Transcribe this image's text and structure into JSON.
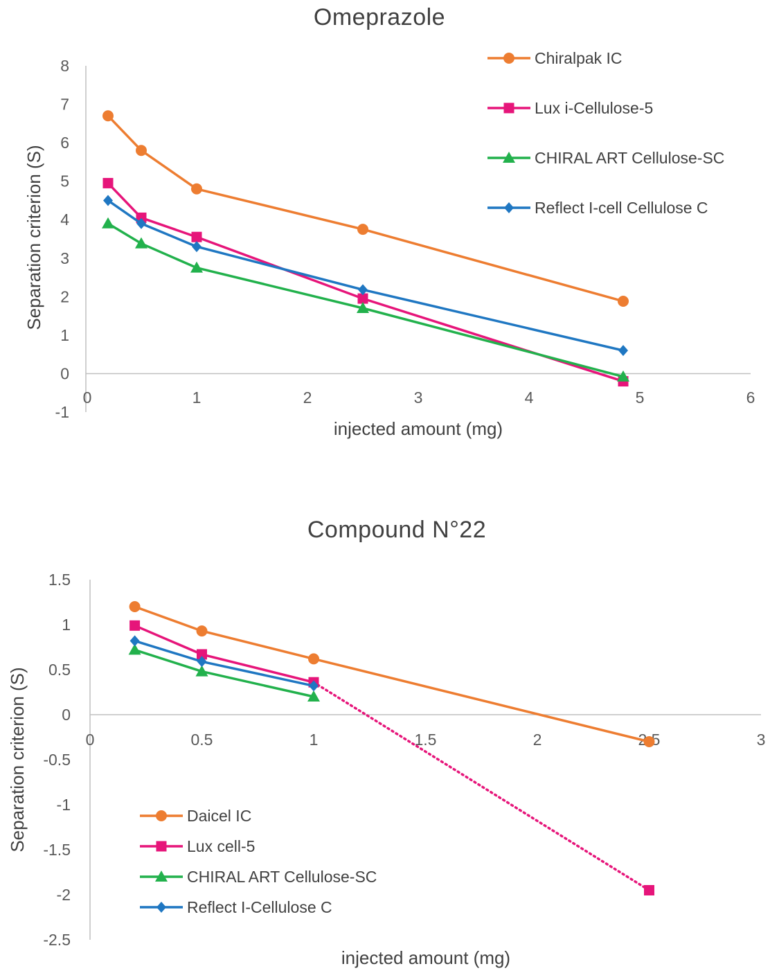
{
  "chart_data": [
    {
      "type": "line",
      "title": "Omeprazole",
      "xlabel": "injected amount (mg)",
      "ylabel": "Separation criterion (S)",
      "xlim": [
        0,
        6
      ],
      "ylim": [
        -1,
        8
      ],
      "xticks": [
        "0",
        "1",
        "2",
        "3",
        "4",
        "5",
        "6"
      ],
      "yticks": [
        "-1",
        "0",
        "1",
        "2",
        "3",
        "4",
        "5",
        "6",
        "7",
        "8"
      ],
      "grid": false,
      "legend_position": "top-right",
      "series": [
        {
          "name": "Chiralpak IC",
          "color": "#ED7D31",
          "marker": "circle",
          "x": [
            0.2,
            0.5,
            1,
            2.5,
            4.85
          ],
          "y": [
            6.7,
            5.8,
            4.8,
            3.75,
            1.88
          ]
        },
        {
          "name": "Lux i-Cellulose-5",
          "color": "#E6157A",
          "marker": "square",
          "x": [
            0.2,
            0.5,
            1,
            2.5,
            4.85
          ],
          "y": [
            4.95,
            4.05,
            3.55,
            1.95,
            -0.2
          ]
        },
        {
          "name": "CHIRAL ART Cellulose-SC",
          "color": "#22B14C",
          "marker": "triangle",
          "x": [
            0.2,
            0.5,
            1,
            2.5,
            4.85
          ],
          "y": [
            3.9,
            3.38,
            2.75,
            1.7,
            -0.08
          ]
        },
        {
          "name": "Reflect I-cell Cellulose C",
          "color": "#1F77C2",
          "marker": "diamond",
          "x": [
            0.2,
            0.5,
            1,
            2.5,
            4.85
          ],
          "y": [
            4.5,
            3.9,
            3.3,
            2.18,
            0.6
          ]
        }
      ]
    },
    {
      "type": "line",
      "title": "Compound  N°22",
      "xlabel": "injected amount (mg)",
      "ylabel": "Separation criterion (S)",
      "xlim": [
        0,
        3
      ],
      "ylim": [
        -2.5,
        1.5
      ],
      "xticks": [
        "0",
        "0.5",
        "1",
        "1.5",
        "2",
        "2.5",
        "3"
      ],
      "yticks": [
        "-2.5",
        "-2",
        "-1.5",
        "-1",
        "-0.5",
        "0",
        "0.5",
        "1",
        "1.5"
      ],
      "grid": false,
      "legend_position": "bottom-left",
      "series": [
        {
          "name": "Daicel IC",
          "color": "#ED7D31",
          "marker": "circle",
          "x": [
            0.2,
            0.5,
            1,
            2.5
          ],
          "y": [
            1.2,
            0.93,
            0.62,
            -0.3
          ]
        },
        {
          "name": "Lux cell-5",
          "color": "#E6157A",
          "marker": "square",
          "x": [
            0.2,
            0.5,
            1,
            2.5
          ],
          "y": [
            0.99,
            0.67,
            0.36,
            -1.95
          ],
          "dotted_last_segment": true
        },
        {
          "name": "CHIRAL ART Cellulose-SC",
          "color": "#22B14C",
          "marker": "triangle",
          "x": [
            0.2,
            0.5,
            1
          ],
          "y": [
            0.72,
            0.48,
            0.2
          ]
        },
        {
          "name": "Reflect I-Cellulose C",
          "color": "#1F77C2",
          "marker": "diamond",
          "x": [
            0.2,
            0.5,
            1
          ],
          "y": [
            0.82,
            0.59,
            0.32
          ]
        }
      ]
    }
  ]
}
